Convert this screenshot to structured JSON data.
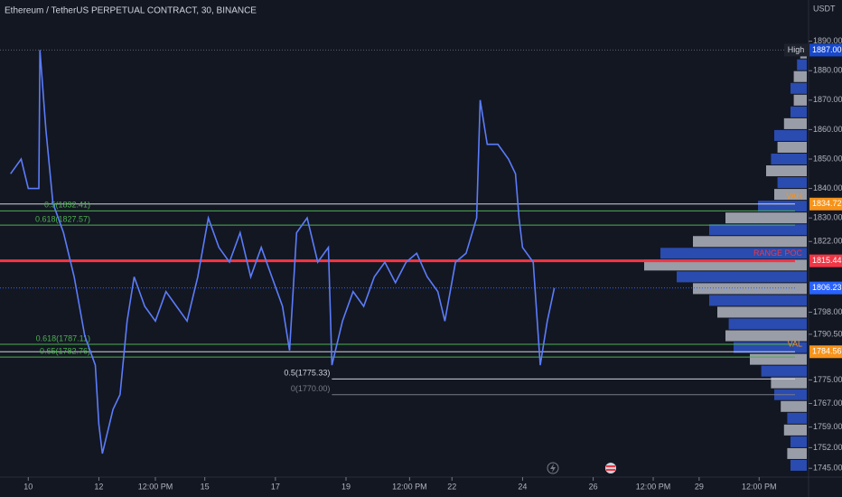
{
  "header": {
    "title": "Ethereum / TetherUS PERPETUAL CONTRACT, 30, BINANCE",
    "currency": "USDT"
  },
  "chart_data": {
    "type": "line",
    "color": "#5b7cfa",
    "x": [
      9.5,
      9.8,
      10.0,
      10.3,
      10.33,
      10.5,
      10.7,
      11.0,
      11.3,
      11.6,
      11.9,
      12.0,
      12.1,
      12.4,
      12.6,
      12.8,
      13.0,
      13.3,
      13.6,
      13.9,
      14.2,
      14.5,
      14.8,
      15.1,
      15.4,
      15.7,
      16.0,
      16.3,
      16.6,
      16.9,
      17.2,
      17.4,
      17.6,
      17.9,
      18.2,
      18.5,
      18.6,
      18.9,
      19.2,
      19.5,
      19.8,
      20.1,
      20.4,
      20.7,
      21.0,
      21.3,
      21.6,
      21.8,
      22.1,
      22.4,
      22.7,
      22.8,
      23.0,
      23.3,
      23.6,
      23.8,
      23.9,
      24.0,
      24.3,
      24.5,
      24.7,
      24.9
    ],
    "values": [
      1845,
      1850,
      1840,
      1840,
      1887,
      1860,
      1835,
      1825,
      1810,
      1790,
      1780,
      1760,
      1750,
      1765,
      1770,
      1795,
      1810,
      1800,
      1795,
      1805,
      1800,
      1795,
      1810,
      1830,
      1820,
      1815,
      1825,
      1810,
      1820,
      1810,
      1800,
      1785,
      1825,
      1830,
      1815,
      1820,
      1780,
      1795,
      1805,
      1800,
      1810,
      1815,
      1808,
      1815,
      1818,
      1810,
      1805,
      1795,
      1815,
      1818,
      1830,
      1870,
      1855,
      1855,
      1850,
      1845,
      1830,
      1820,
      1815,
      1780,
      1795,
      1806.23
    ],
    "xlim": [
      9.2,
      32.1
    ],
    "ylim": [
      1742,
      1904
    ],
    "yticks": [
      {
        "value": 1890,
        "label": "1890.00"
      },
      {
        "value": 1880,
        "label": "1880.00"
      },
      {
        "value": 1870,
        "label": "1870.00"
      },
      {
        "value": 1860,
        "label": "1860.00"
      },
      {
        "value": 1850,
        "label": "1850.00"
      },
      {
        "value": 1840,
        "label": "1840.00"
      },
      {
        "value": 1830,
        "label": "1830.00"
      },
      {
        "value": 1822,
        "label": "1822.00"
      },
      {
        "value": 1798,
        "label": "1798.00"
      },
      {
        "value": 1790.5,
        "label": "1790.50"
      },
      {
        "value": 1775,
        "label": "1775.00"
      },
      {
        "value": 1767,
        "label": "1767.00"
      },
      {
        "value": 1759,
        "label": "1759.00"
      },
      {
        "value": 1752,
        "label": "1752.00"
      },
      {
        "value": 1745,
        "label": "1745.00"
      }
    ],
    "xticks": [
      10,
      12,
      {
        "value": 13.6,
        "label": "12:00 PM"
      },
      15,
      17,
      19,
      {
        "value": 20.8,
        "label": "12:00 PM"
      },
      22,
      24,
      26,
      {
        "value": 27.7,
        "label": "12:00 PM"
      },
      29,
      {
        "value": 30.7,
        "label": "12:00 PM"
      }
    ],
    "levels": [
      {
        "value": 1887,
        "color": "#5d606b",
        "dash": true
      },
      {
        "value": 1834.72,
        "color": "#d1d4dc"
      },
      {
        "value": 1832.41,
        "color": "#4caf50",
        "text": "0.5(1832.41)"
      },
      {
        "value": 1827.57,
        "color": "#4caf50",
        "text": "0.618(1827.57)"
      },
      {
        "value": 1815.44,
        "color": "#f23645",
        "width": 3
      },
      {
        "value": 1806.23,
        "color": "#2962ff",
        "dash": true
      },
      {
        "value": 1787.11,
        "color": "#4caf50",
        "text": "0.618(1787.11)"
      },
      {
        "value": 1784.56,
        "color": "#d1d4dc"
      },
      {
        "value": 1782.76,
        "color": "#4caf50",
        "text": "0.65(1782.76)"
      },
      {
        "value": 1775.33,
        "color": "#d1d4dc",
        "text": "0.5(1775.33)",
        "start": 18.6
      },
      {
        "value": 1770,
        "color": "#787b86",
        "text": "0(1770.00)",
        "start": 18.6
      }
    ],
    "tags": [
      {
        "value": 1887,
        "label": "1887.00",
        "color": "#1848cc",
        "name": "High",
        "boxed": true
      },
      {
        "value": 1834.72,
        "label": "1834.72",
        "color": "#f7931a",
        "name": "VAH"
      },
      {
        "value": 1815.44,
        "label": "1815.44",
        "color": "#f23645",
        "name": "RANGE POC"
      },
      {
        "value": 1806.23,
        "label": "1806.23",
        "color": "#2962ff"
      },
      {
        "value": 1784.56,
        "label": "1784.56",
        "color": "#f7931a",
        "name": "VAL"
      }
    ],
    "profile": {
      "prices": [
        1746,
        1750,
        1754,
        1758,
        1762,
        1766,
        1770,
        1774,
        1778,
        1782,
        1786,
        1790,
        1794,
        1798,
        1802,
        1806,
        1810,
        1814,
        1818,
        1822,
        1826,
        1830,
        1834,
        1838,
        1842,
        1846,
        1850,
        1854,
        1858,
        1862,
        1866,
        1870,
        1874,
        1878,
        1882,
        1886
      ],
      "volumes": [
        10,
        12,
        10,
        14,
        12,
        16,
        20,
        22,
        28,
        35,
        45,
        50,
        48,
        55,
        60,
        70,
        80,
        100,
        90,
        70,
        60,
        50,
        30,
        20,
        18,
        25,
        22,
        18,
        20,
        14,
        10,
        8,
        10,
        8,
        6,
        4
      ],
      "color": "#2f55c8",
      "color2": "#b2b5be"
    }
  }
}
